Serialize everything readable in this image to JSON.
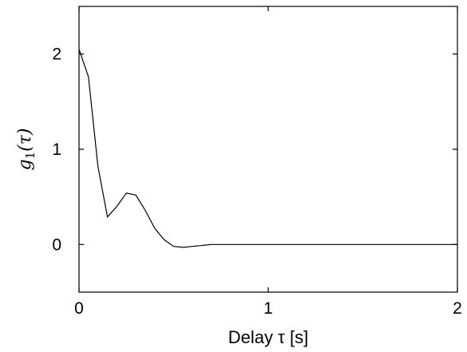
{
  "chart_data": {
    "type": "line",
    "title": "",
    "xlabel": "Delay τ [s]",
    "ylabel": "g1(τ)",
    "ylabel_parts": {
      "base": "g",
      "sub": "1",
      "arg": "(τ)"
    },
    "xlim": [
      0,
      2
    ],
    "ylim": [
      -0.5,
      2.5
    ],
    "xticks": [
      0,
      1,
      2
    ],
    "yticks": [
      0,
      1,
      2
    ],
    "grid": false,
    "series": [
      {
        "x": [
          0,
          0.05,
          0.1,
          0.15,
          0.2,
          0.25,
          0.3,
          0.35,
          0.4,
          0.45,
          0.5,
          0.55,
          0.6,
          0.7,
          0.8,
          1.0,
          1.2,
          1.4,
          1.6,
          1.8,
          2.0
        ],
        "values": [
          2.05,
          1.76,
          0.82,
          0.29,
          0.4,
          0.54,
          0.52,
          0.36,
          0.17,
          0.05,
          -0.02,
          -0.03,
          -0.02,
          0.0,
          0.0,
          0.0,
          0.0,
          0.0,
          0.0,
          0.0,
          0.0
        ],
        "color": "#000000"
      }
    ]
  }
}
